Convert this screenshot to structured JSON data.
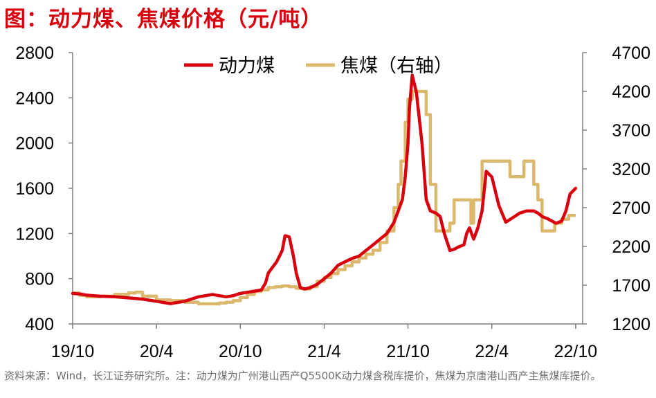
{
  "title": "图：动力煤、焦煤价格（元/吨）",
  "source": "资料来源：Wind，长江证券研究所。注：动力煤为广州港山西产Q5500K动力煤含税库提价，焦煤为京唐港山西产主焦煤库提价。",
  "colors": {
    "thermal": "#d9000d",
    "coking": "#dcb86c",
    "axis": "#7f7f7f",
    "title": "#d9000d"
  },
  "chart_data": {
    "type": "line",
    "x_ticks": [
      "19/10",
      "20/4",
      "20/10",
      "21/4",
      "21/10",
      "22/4",
      "22/10"
    ],
    "xlim": [
      0,
      36.5
    ],
    "ylim_left": [
      400,
      2800
    ],
    "yticks_left": [
      "400",
      "800",
      "1200",
      "1600",
      "2000",
      "2400",
      "2800"
    ],
    "ylim_right": [
      1200,
      4700
    ],
    "yticks_right": [
      "1200",
      "1700",
      "2200",
      "2700",
      "3200",
      "3700",
      "4200",
      "4700"
    ],
    "legend_position": "top",
    "series": [
      {
        "name": "动力煤",
        "axis": "left",
        "x": [
          0,
          0.5,
          1,
          1.5,
          2,
          3,
          4,
          5,
          6,
          6.5,
          7,
          7.5,
          8,
          8.5,
          9,
          9.5,
          10,
          10.5,
          11,
          11.5,
          12,
          12.5,
          13,
          13.5,
          13.8,
          14,
          14.3,
          14.6,
          15,
          15.2,
          15.5,
          15.8,
          16,
          16.3,
          16.6,
          17,
          17.5,
          18,
          18.5,
          19,
          19.5,
          20,
          20.5,
          21,
          21.5,
          22,
          22.5,
          23,
          23.3,
          23.6,
          23.8,
          24,
          24.1,
          24.3,
          24.6,
          25,
          25.3,
          25.6,
          26,
          26.3,
          26.6,
          27,
          27.3,
          27.6,
          28,
          28.2,
          28.4,
          28.7,
          29,
          29.3,
          29.6,
          30,
          30.5,
          31,
          31.5,
          32,
          32.5,
          33,
          33.3,
          33.6,
          34,
          34.3,
          34.6,
          35,
          35.3,
          35.6,
          36
        ],
        "values": [
          670,
          665,
          655,
          650,
          645,
          640,
          630,
          620,
          600,
          590,
          580,
          590,
          600,
          620,
          640,
          650,
          660,
          650,
          640,
          650,
          670,
          680,
          690,
          700,
          760,
          850,
          900,
          950,
          1050,
          1180,
          1170,
          1000,
          850,
          720,
          710,
          720,
          750,
          800,
          850,
          920,
          950,
          980,
          1000,
          1050,
          1100,
          1150,
          1200,
          1300,
          1400,
          1500,
          1700,
          2000,
          2300,
          2600,
          2450,
          2000,
          1500,
          1400,
          1380,
          1350,
          1200,
          1050,
          1060,
          1080,
          1100,
          1200,
          1250,
          1150,
          1250,
          1400,
          1750,
          1700,
          1450,
          1300,
          1340,
          1380,
          1400,
          1400,
          1380,
          1350,
          1330,
          1310,
          1290,
          1310,
          1400,
          1550,
          1600
        ]
      },
      {
        "name": "焦煤（右轴）",
        "axis": "right",
        "x": [
          0,
          0.5,
          1,
          1.5,
          2,
          3,
          4,
          4.5,
          5,
          6,
          7,
          8,
          9,
          10,
          10.5,
          11,
          11.5,
          12,
          12.5,
          13,
          13.5,
          14,
          14.5,
          15,
          15.5,
          16,
          16.5,
          17,
          17.5,
          18,
          18.5,
          19,
          19.5,
          20,
          20.5,
          21,
          21.5,
          22,
          22.5,
          23,
          23.3,
          23.5,
          23.8,
          24,
          24.3,
          24.6,
          25,
          25.3,
          25.6,
          26,
          26.5,
          27,
          27.3,
          27.6,
          28,
          28.3,
          28.5,
          28.7,
          29,
          29.3,
          29.6,
          30,
          30.5,
          31,
          31.3,
          31.6,
          32,
          32.3,
          32.6,
          33,
          33.3,
          33.6,
          34,
          34.5,
          35,
          35.5,
          36
        ],
        "values": [
          1600,
          1570,
          1550,
          1550,
          1560,
          1580,
          1600,
          1610,
          1560,
          1510,
          1500,
          1480,
          1460,
          1460,
          1470,
          1480,
          1500,
          1540,
          1580,
          1620,
          1640,
          1670,
          1680,
          1690,
          1680,
          1660,
          1650,
          1680,
          1750,
          1800,
          1850,
          1900,
          1950,
          2000,
          2050,
          2100,
          2150,
          2250,
          2400,
          2700,
          3000,
          3300,
          3800,
          4100,
          4200,
          4200,
          4200,
          3900,
          3000,
          2400,
          2400,
          2500,
          2800,
          2800,
          2800,
          2800,
          2500,
          2800,
          2800,
          3300,
          3300,
          3300,
          3300,
          3300,
          3100,
          3100,
          3100,
          3300,
          3300,
          3000,
          2800,
          2400,
          2400,
          2500,
          2550,
          2600,
          2600
        ]
      }
    ]
  }
}
